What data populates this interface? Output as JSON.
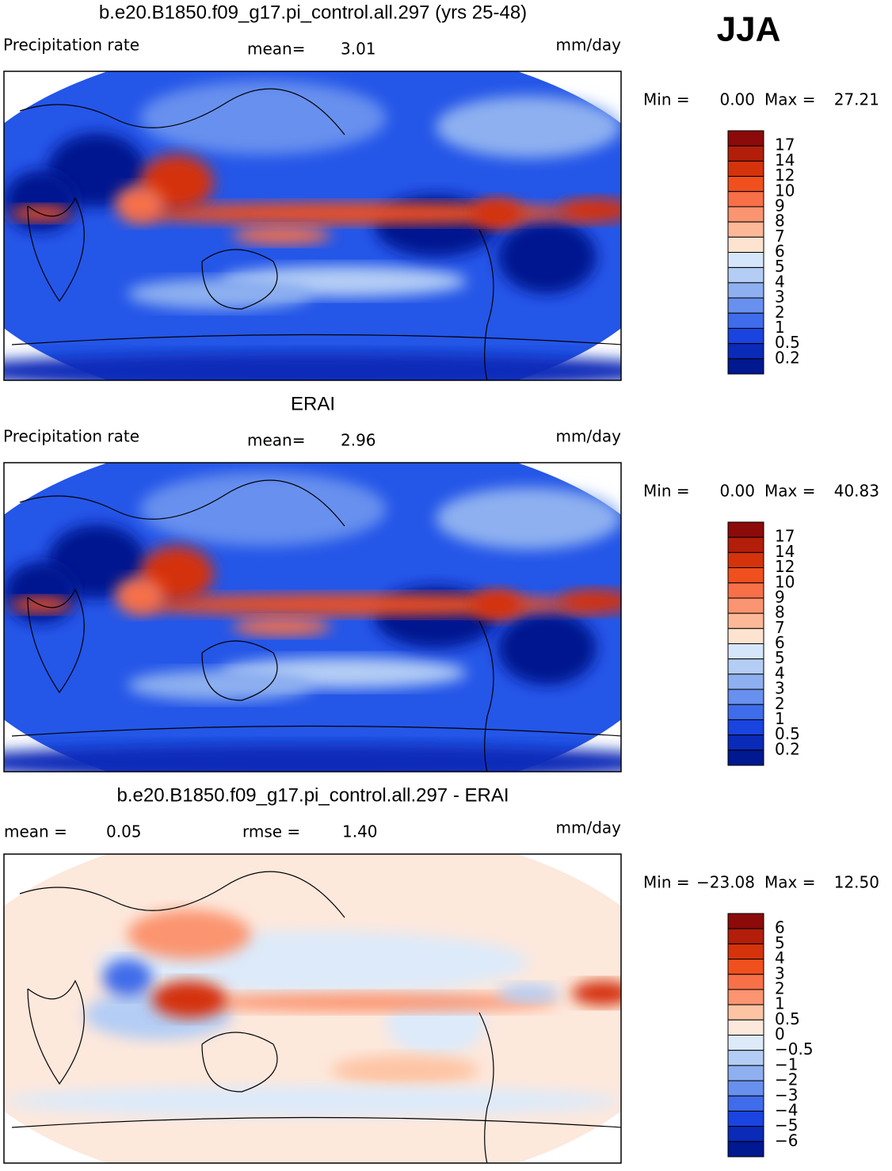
{
  "season": "JJA",
  "panels": [
    {
      "title": "b.e20.B1850.f09_g17.pi_control.all.297 (yrs 25-48)",
      "left_label": "Precipitation rate",
      "stats": [
        {
          "label": "mean=",
          "value": "3.01"
        }
      ],
      "unit": "mm/day",
      "min_label": "Min =",
      "min_value": "0.00",
      "max_label": "Max =",
      "max_value": "27.21",
      "colorbar": {
        "labels": [
          "17",
          "14",
          "12",
          "10",
          "9",
          "8",
          "7",
          "6",
          "5",
          "4",
          "3",
          "2",
          "1",
          "0.5",
          "0.2"
        ],
        "colors": [
          "#8c0a0a",
          "#b21e0a",
          "#d4330c",
          "#f0501e",
          "#f77048",
          "#fb9470",
          "#fdb898",
          "#fde3d0",
          "#d6e6fa",
          "#b4cdf5",
          "#8eb0f0",
          "#6890ee",
          "#3f6cea",
          "#1a44e0",
          "#0a2ab8",
          "#001890"
        ]
      }
    },
    {
      "title": "ERAI",
      "left_label": "Precipitation rate",
      "stats": [
        {
          "label": "mean=",
          "value": "2.96"
        }
      ],
      "unit": "mm/day",
      "min_label": "Min =",
      "min_value": "0.00",
      "max_label": "Max =",
      "max_value": "40.83",
      "colorbar": {
        "labels": [
          "17",
          "14",
          "12",
          "10",
          "9",
          "8",
          "7",
          "6",
          "5",
          "4",
          "3",
          "2",
          "1",
          "0.5",
          "0.2"
        ],
        "colors": [
          "#8c0a0a",
          "#b21e0a",
          "#d4330c",
          "#f0501e",
          "#f77048",
          "#fb9470",
          "#fdb898",
          "#fde3d0",
          "#d6e6fa",
          "#b4cdf5",
          "#8eb0f0",
          "#6890ee",
          "#3f6cea",
          "#1a44e0",
          "#0a2ab8",
          "#001890"
        ]
      }
    },
    {
      "title": "b.e20.B1850.f09_g17.pi_control.all.297 - ERAI",
      "stats": [
        {
          "label": "mean =",
          "value": "0.05"
        },
        {
          "label": "rmse =",
          "value": "1.40"
        }
      ],
      "unit": "mm/day",
      "min_label": "Min =",
      "min_value": "−23.08",
      "max_label": "Max =",
      "max_value": "12.50",
      "colorbar": {
        "labels": [
          "6",
          "5",
          "4",
          "3",
          "2",
          "1",
          "0.5",
          "0",
          "−0.5",
          "−1",
          "−2",
          "−3",
          "−4",
          "−5",
          "−6"
        ],
        "colors": [
          "#8c0a0a",
          "#b21e0a",
          "#d4330c",
          "#f0501e",
          "#f77048",
          "#fb9470",
          "#fdc4a4",
          "#fde8dc",
          "#dceafa",
          "#b4cdf5",
          "#8eb0f0",
          "#6890ee",
          "#3f6cea",
          "#1a44e0",
          "#0a2ab8",
          "#001890"
        ]
      }
    }
  ]
}
